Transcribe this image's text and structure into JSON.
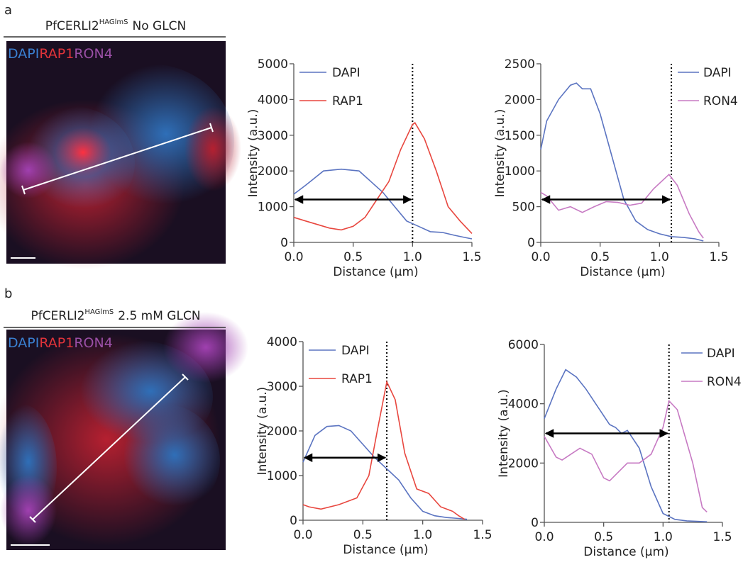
{
  "panels": [
    {
      "label": "a",
      "title_main": "PfCERLI2",
      "title_sup": "HAGlmS",
      "title_rest": "No GLCN",
      "channels": [
        {
          "name": "DAPI",
          "color": "#3a7fd0"
        },
        {
          "name": "RAP1",
          "color": "#e0333a"
        },
        {
          "name": "RON4",
          "color": "#9a4fa6"
        }
      ]
    },
    {
      "label": "b",
      "title_main": "PfCERLI2",
      "title_sup": "HAGlmS",
      "title_rest": "2.5 mM GLCN",
      "channels": [
        {
          "name": "DAPI",
          "color": "#3a7fd0"
        },
        {
          "name": "RAP1",
          "color": "#e0333a"
        },
        {
          "name": "RON4",
          "color": "#9a4fa6"
        }
      ]
    }
  ],
  "chart_data": [
    {
      "type": "line",
      "xlabel": "Distance (μm)",
      "ylabel": "Intensity (a.u.)",
      "xlim": [
        0,
        1.5
      ],
      "xticks": [
        {
          "value": 0,
          "label": "0.0"
        },
        0.5,
        {
          "value": 1,
          "label": "1.0"
        },
        1.5
      ],
      "ylim": [
        0,
        5000
      ],
      "yticks": [
        0,
        1000,
        2000,
        3000,
        4000,
        5000
      ],
      "legend": "upper left",
      "vline": 1.0,
      "arrow": {
        "x_start": 0,
        "x_end": 1.0,
        "y": 1200
      },
      "series": [
        {
          "name": "DAPI",
          "color": "#5b74c1",
          "x": [
            0,
            0.1,
            0.25,
            0.4,
            0.55,
            0.65,
            0.75,
            0.85,
            0.95,
            1.05,
            1.15,
            1.25,
            1.35,
            1.45,
            1.5
          ],
          "values": [
            1350,
            1600,
            2000,
            2050,
            2000,
            1700,
            1400,
            1000,
            600,
            450,
            300,
            280,
            200,
            130,
            100
          ]
        },
        {
          "name": "RAP1",
          "color": "#e8473f",
          "x": [
            0,
            0.1,
            0.2,
            0.3,
            0.4,
            0.5,
            0.6,
            0.7,
            0.8,
            0.9,
            1.0,
            1.02,
            1.1,
            1.2,
            1.3,
            1.4,
            1.5
          ],
          "values": [
            700,
            600,
            500,
            400,
            350,
            450,
            700,
            1200,
            1700,
            2600,
            3300,
            3350,
            2900,
            2000,
            1000,
            600,
            250
          ]
        }
      ]
    },
    {
      "type": "line",
      "xlabel": "Distance (μm)",
      "ylabel": "Intensity (a.u.)",
      "xlim": [
        0,
        1.5
      ],
      "xticks": [
        {
          "value": 0,
          "label": "0.0"
        },
        0.5,
        {
          "value": 1,
          "label": "1.0"
        },
        1.5
      ],
      "ylim": [
        0,
        2500
      ],
      "yticks": [
        0,
        500,
        1000,
        1500,
        2000,
        2500
      ],
      "legend": "upper right",
      "vline": 1.1,
      "arrow": {
        "x_start": 0,
        "x_end": 1.1,
        "y": 600
      },
      "series": [
        {
          "name": "DAPI",
          "color": "#5b74c1",
          "x": [
            0,
            0.05,
            0.15,
            0.25,
            0.3,
            0.35,
            0.42,
            0.5,
            0.6,
            0.7,
            0.8,
            0.9,
            1.0,
            1.1,
            1.2,
            1.3,
            1.37
          ],
          "values": [
            1300,
            1700,
            2000,
            2200,
            2230,
            2150,
            2150,
            1800,
            1200,
            600,
            300,
            180,
            120,
            80,
            70,
            50,
            20
          ]
        },
        {
          "name": "RON4",
          "color": "#c77ac3",
          "x": [
            0,
            0.05,
            0.15,
            0.25,
            0.35,
            0.45,
            0.55,
            0.65,
            0.75,
            0.85,
            0.95,
            1.08,
            1.15,
            1.25,
            1.33,
            1.37
          ],
          "values": [
            700,
            650,
            450,
            500,
            420,
            500,
            570,
            560,
            520,
            550,
            750,
            950,
            800,
            400,
            150,
            60
          ]
        }
      ]
    },
    {
      "type": "line",
      "xlabel": "Distance (μm)",
      "ylabel": "Intensity (a.u.)",
      "xlim": [
        0,
        1.5
      ],
      "xticks": [
        {
          "value": 0,
          "label": "0.0"
        },
        0.5,
        {
          "value": 1,
          "label": "1.0"
        },
        1.5
      ],
      "ylim": [
        0,
        4000
      ],
      "yticks": [
        0,
        1000,
        2000,
        3000,
        4000
      ],
      "legend": "upper left",
      "vline": 0.7,
      "arrow": {
        "x_start": 0,
        "x_end": 0.7,
        "y": 1400
      },
      "series": [
        {
          "name": "DAPI",
          "color": "#5b74c1",
          "x": [
            0,
            0.1,
            0.2,
            0.3,
            0.4,
            0.5,
            0.6,
            0.7,
            0.8,
            0.9,
            1.0,
            1.1,
            1.2,
            1.3,
            1.37
          ],
          "values": [
            1300,
            1900,
            2100,
            2120,
            2000,
            1700,
            1400,
            1150,
            900,
            500,
            200,
            100,
            60,
            40,
            20
          ]
        },
        {
          "name": "RAP1",
          "color": "#e8473f",
          "x": [
            0,
            0.05,
            0.15,
            0.3,
            0.45,
            0.55,
            0.62,
            0.7,
            0.77,
            0.85,
            0.95,
            1.05,
            1.15,
            1.25,
            1.3,
            1.35
          ],
          "values": [
            350,
            300,
            250,
            350,
            500,
            1000,
            2000,
            3100,
            2700,
            1500,
            700,
            600,
            300,
            200,
            100,
            20
          ]
        }
      ]
    },
    {
      "type": "line",
      "xlabel": "Distance (μm)",
      "ylabel": "Intensity (a.u.)",
      "xlim": [
        0,
        1.5
      ],
      "xticks": [
        {
          "value": 0,
          "label": "0.0"
        },
        0.5,
        {
          "value": 1,
          "label": "1.0"
        },
        1.5
      ],
      "ylim": [
        0,
        6000
      ],
      "yticks": [
        0,
        2000,
        4000,
        6000
      ],
      "legend": "upper right",
      "vline": 1.05,
      "arrow": {
        "x_start": 0,
        "x_end": 1.05,
        "y": 3000
      },
      "series": [
        {
          "name": "DAPI",
          "color": "#5b74c1",
          "x": [
            0,
            0.1,
            0.18,
            0.27,
            0.35,
            0.45,
            0.55,
            0.6,
            0.65,
            0.7,
            0.8,
            0.9,
            1.0,
            1.1,
            1.2,
            1.37
          ],
          "values": [
            3500,
            4500,
            5150,
            4900,
            4500,
            3900,
            3300,
            3200,
            3000,
            3100,
            2500,
            1200,
            300,
            100,
            50,
            20
          ]
        },
        {
          "name": "RON4",
          "color": "#c77ac3",
          "x": [
            0,
            0.1,
            0.15,
            0.3,
            0.4,
            0.5,
            0.55,
            0.7,
            0.8,
            0.9,
            1.0,
            1.05,
            1.12,
            1.25,
            1.33,
            1.37
          ],
          "values": [
            2900,
            2200,
            2100,
            2500,
            2300,
            1500,
            1400,
            2000,
            2000,
            2300,
            3200,
            4100,
            3800,
            2000,
            500,
            350
          ]
        }
      ]
    }
  ]
}
